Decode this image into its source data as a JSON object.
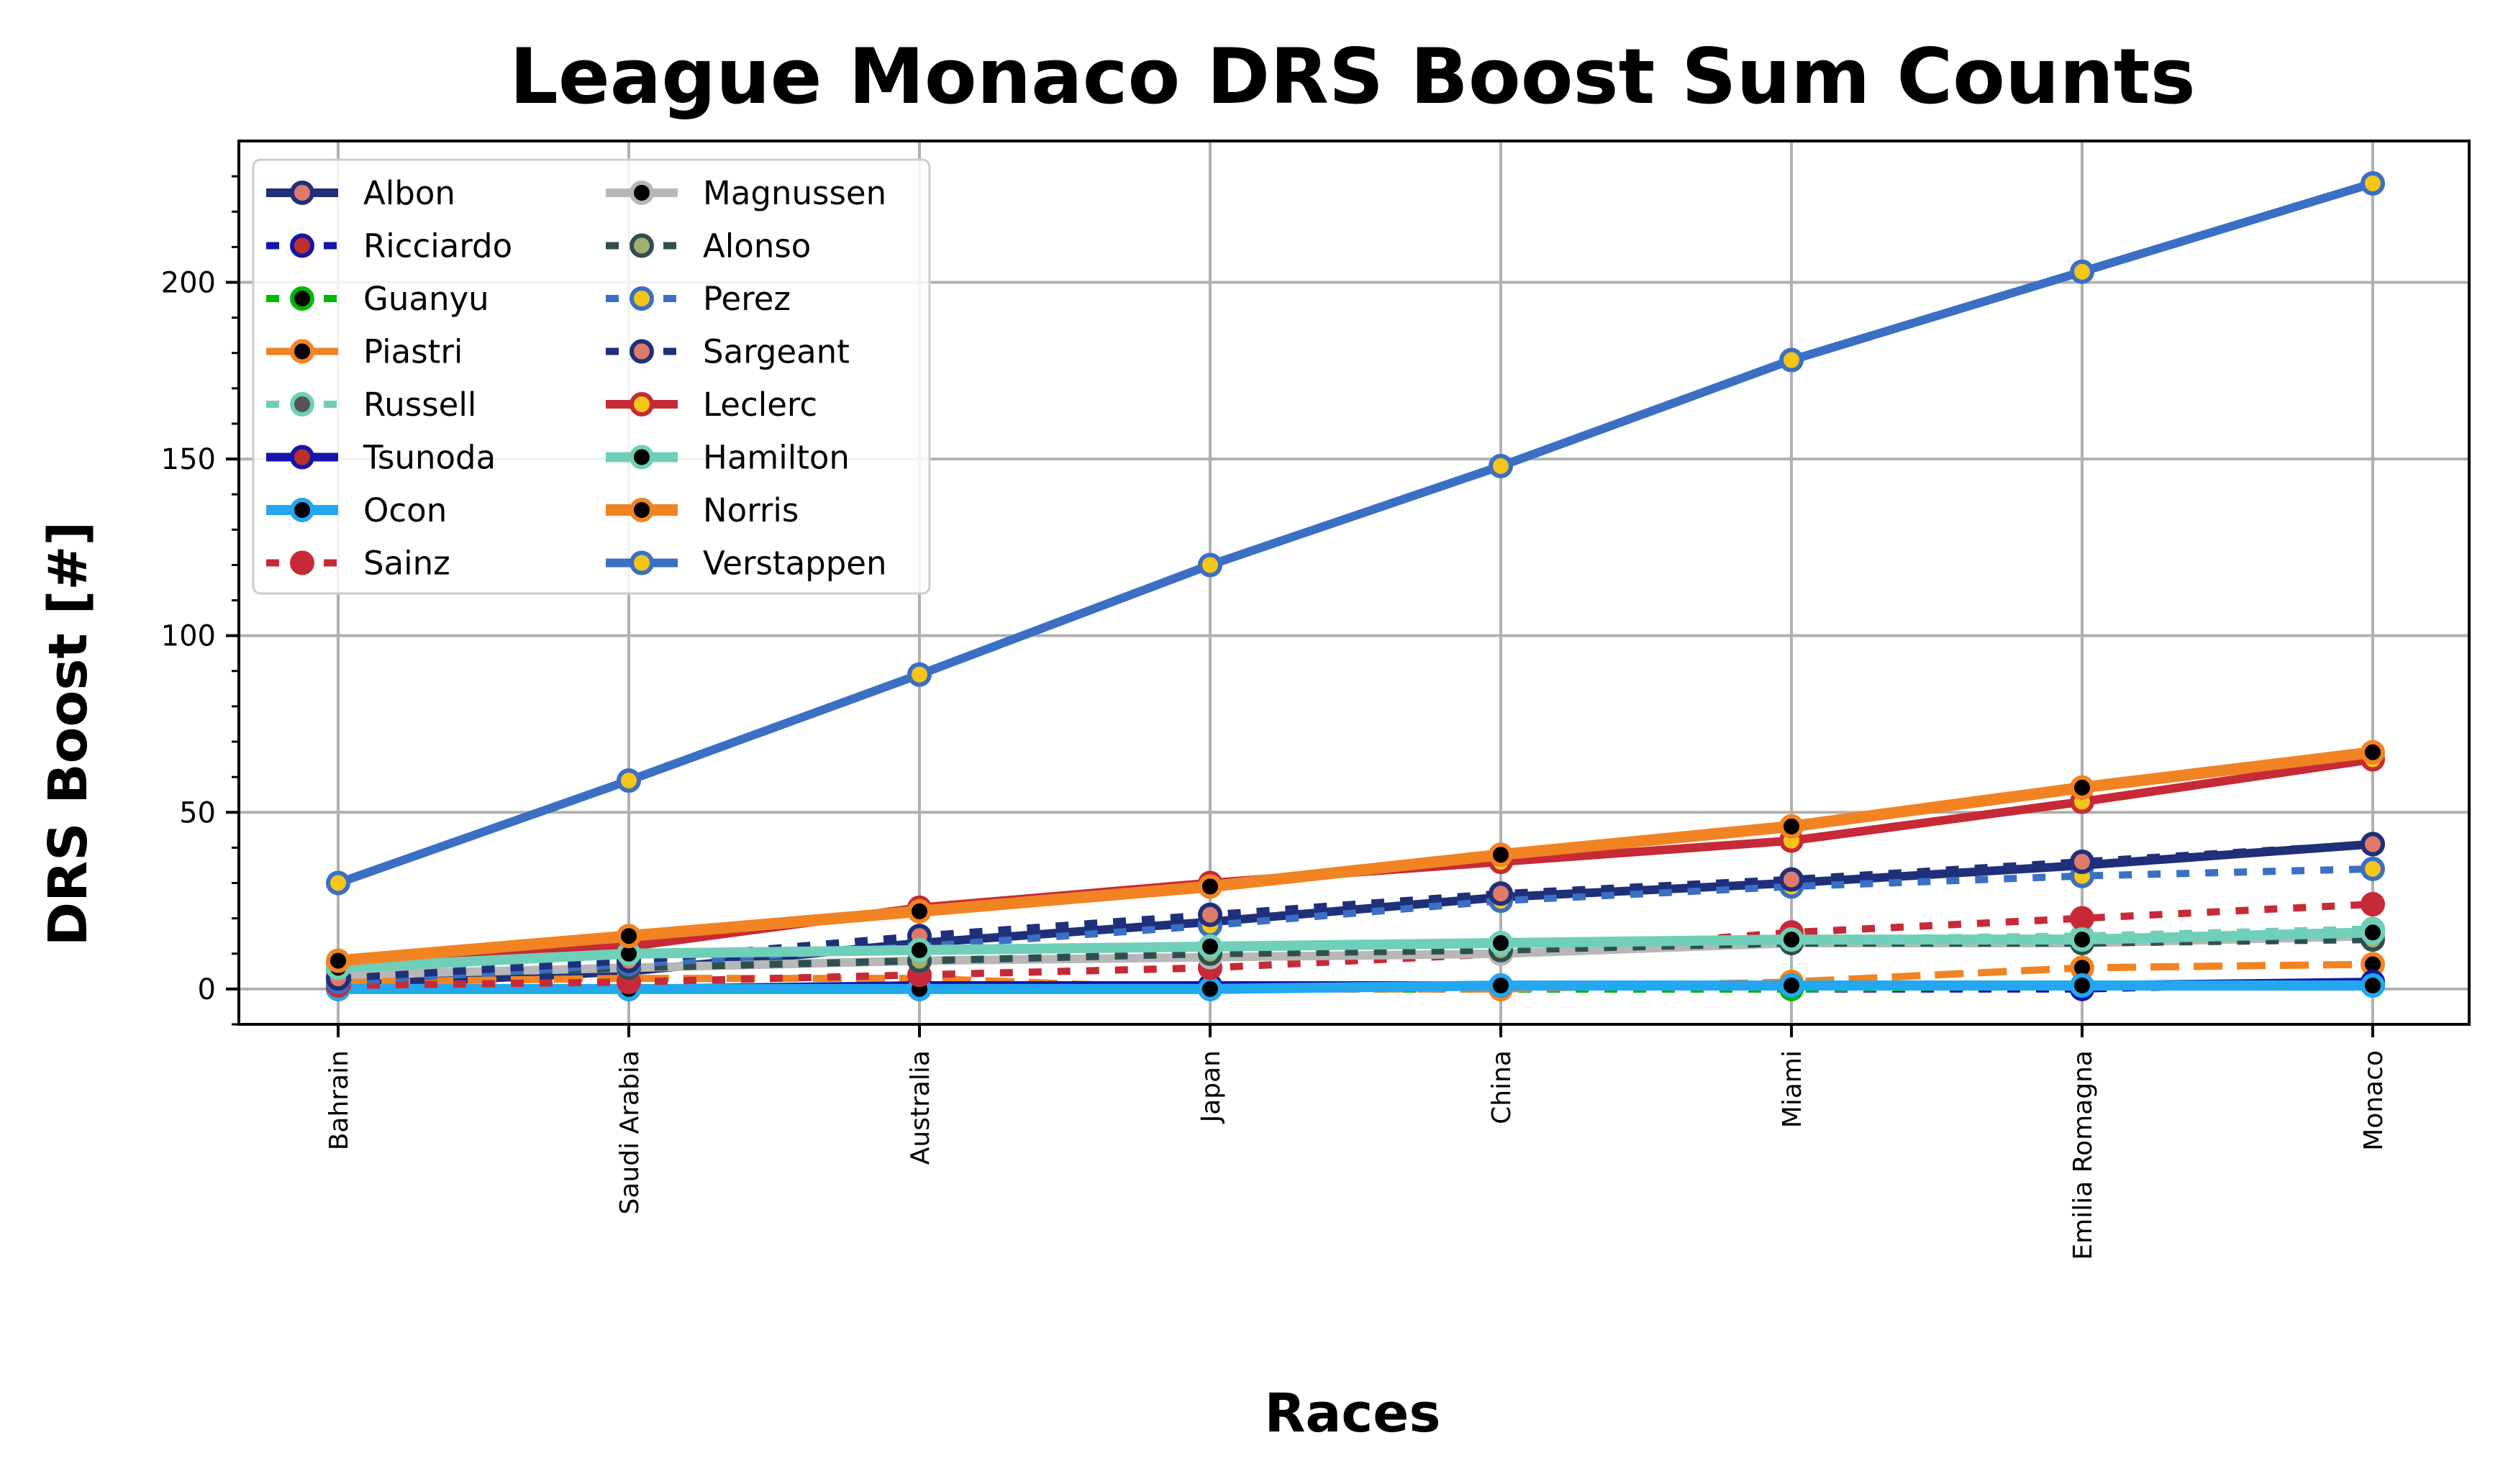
{
  "chart_data": {
    "type": "line",
    "title": "League Monaco DRS Boost Sum Counts",
    "xlabel": "Races",
    "ylabel": "DRS Boost [#]",
    "categories": [
      "Bahrain",
      "Saudi Arabia",
      "Australia",
      "Japan",
      "China",
      "Miami",
      "Emilia Romagna",
      "Monaco"
    ],
    "ylim": [
      -10,
      240
    ],
    "yticks": [
      0,
      50,
      100,
      150,
      200
    ],
    "grid": true,
    "legend_position": "upper-left",
    "legend_columns": 2,
    "series": [
      {
        "name": "Albon",
        "values": [
          1,
          5,
          13,
          19,
          26,
          30,
          35,
          41
        ],
        "color": "#1f2f7a",
        "dash": "solid",
        "width": 12,
        "marker_face": "#e07b6a",
        "marker_edge": "#1f2f7a"
      },
      {
        "name": "Ricciardo",
        "values": [
          0,
          0,
          0,
          0,
          0,
          0,
          0,
          2
        ],
        "color": "#1515a8",
        "dash": "dot",
        "width": 10,
        "marker_face": "#c0302a",
        "marker_edge": "#1515a8"
      },
      {
        "name": "Guanyu",
        "values": [
          0,
          0,
          0,
          0,
          0,
          0,
          1,
          1
        ],
        "color": "#00b800",
        "dash": "dot",
        "width": 10,
        "marker_face": "#000000",
        "marker_edge": "#00b800"
      },
      {
        "name": "Piastri",
        "values": [
          2,
          3,
          3,
          0,
          0,
          2,
          6,
          7
        ],
        "color": "#f28322",
        "dash": "dash",
        "width": 10,
        "marker_face": "#000000",
        "marker_edge": "#f28322"
      },
      {
        "name": "Russell",
        "values": [
          5,
          9,
          11,
          12,
          13,
          14,
          15,
          17
        ],
        "color": "#6fcfb8",
        "dash": "dot",
        "width": 10,
        "marker_face": "#555555",
        "marker_edge": "#6fcfb8"
      },
      {
        "name": "Tsunoda",
        "values": [
          0,
          0,
          1,
          1,
          1,
          1,
          1,
          2
        ],
        "color": "#1515a8",
        "dash": "solid",
        "width": 12,
        "marker_face": "#c0302a",
        "marker_edge": "#1515a8"
      },
      {
        "name": "Ocon",
        "values": [
          0,
          0,
          0,
          0,
          1,
          1,
          1,
          1
        ],
        "color": "#22a7f0",
        "dash": "solid",
        "width": 14,
        "marker_face": "#000000",
        "marker_edge": "#22a7f0"
      },
      {
        "name": "Sainz",
        "values": [
          1,
          2,
          4,
          6,
          10,
          16,
          20,
          24
        ],
        "color": "#c62a36",
        "dash": "dot",
        "width": 10,
        "marker_face": "#c62a36",
        "marker_edge": "#c62a36"
      },
      {
        "name": "Magnussen",
        "values": [
          4,
          6,
          8,
          9,
          10,
          13,
          13,
          15
        ],
        "color": "#b7b7b7",
        "dash": "solid",
        "width": 12,
        "marker_face": "#000000",
        "marker_edge": "#b7b7b7"
      },
      {
        "name": "Alonso",
        "values": [
          3,
          6,
          8,
          10,
          11,
          13,
          13,
          14
        ],
        "color": "#2f4f4f",
        "dash": "dot",
        "width": 10,
        "marker_face": "#a0b070",
        "marker_edge": "#2f4f4f"
      },
      {
        "name": "Perez",
        "values": [
          2,
          7,
          12,
          18,
          25,
          29,
          32,
          34
        ],
        "color": "#3a6fc4",
        "dash": "dot",
        "width": 10,
        "marker_face": "#f5c518",
        "marker_edge": "#3a6fc4"
      },
      {
        "name": "Sargeant",
        "values": [
          3,
          8,
          15,
          21,
          27,
          31,
          36,
          41
        ],
        "color": "#1f2f7a",
        "dash": "dot",
        "width": 10,
        "marker_face": "#e07b6a",
        "marker_edge": "#1f2f7a"
      },
      {
        "name": "Leclerc",
        "values": [
          7,
          12,
          23,
          30,
          36,
          42,
          53,
          65
        ],
        "color": "#c62a36",
        "dash": "solid",
        "width": 12,
        "marker_face": "#f5c518",
        "marker_edge": "#c62a36"
      },
      {
        "name": "Hamilton",
        "values": [
          6,
          10,
          11,
          12,
          13,
          14,
          14,
          16
        ],
        "color": "#6fcfb8",
        "dash": "solid",
        "width": 14,
        "marker_face": "#000000",
        "marker_edge": "#6fcfb8"
      },
      {
        "name": "Norris",
        "values": [
          8,
          15,
          22,
          29,
          38,
          46,
          57,
          67
        ],
        "color": "#f28322",
        "dash": "solid",
        "width": 16,
        "marker_face": "#000000",
        "marker_edge": "#f28322"
      },
      {
        "name": "Verstappen",
        "values": [
          30,
          59,
          89,
          120,
          148,
          178,
          203,
          228
        ],
        "color": "#3a6fc4",
        "dash": "solid",
        "width": 12,
        "marker_face": "#f5c518",
        "marker_edge": "#3a6fc4"
      }
    ]
  }
}
